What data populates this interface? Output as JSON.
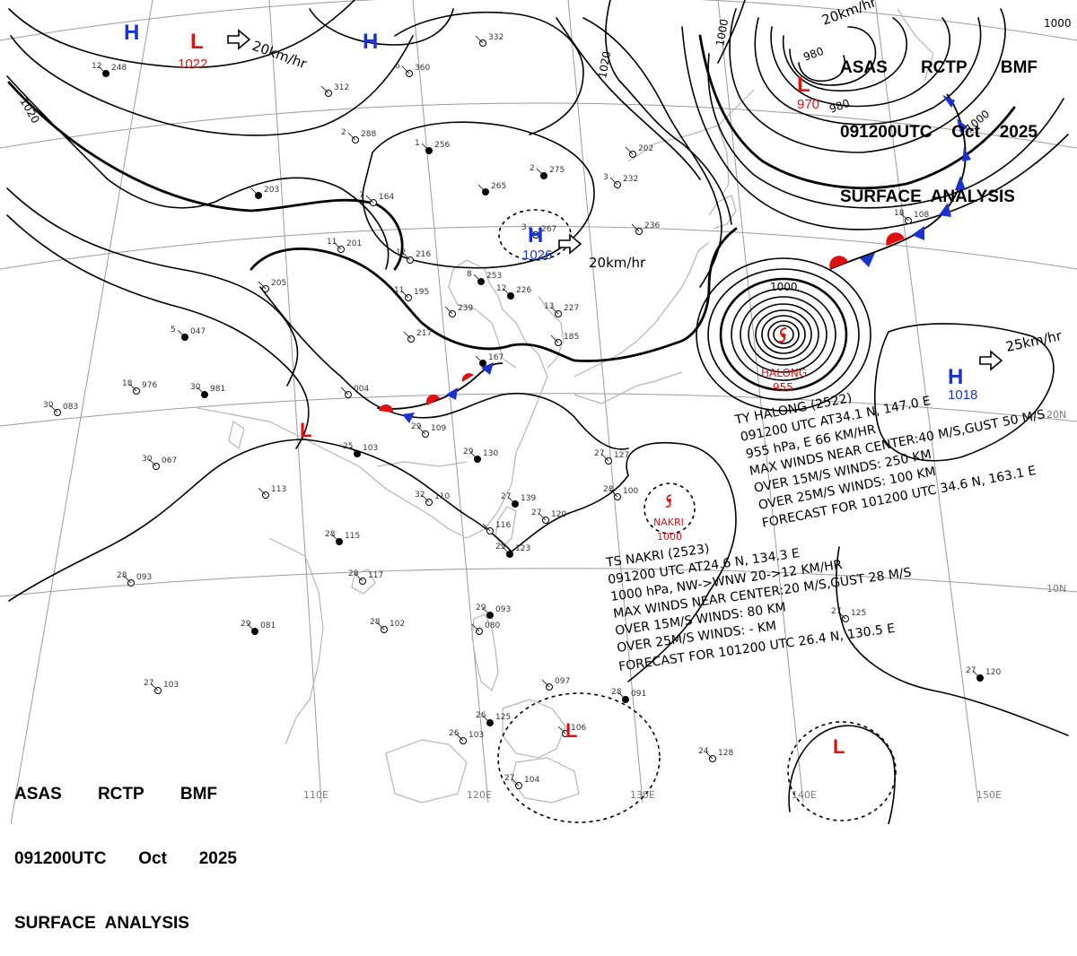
{
  "chart": {
    "agency": "ASAS",
    "station": "RCTP",
    "office": "BMF",
    "valid": "091200UTC",
    "month": "Oct",
    "year": "2025",
    "title": "SURFACE  ANALYSIS"
  },
  "colors": {
    "isobar": "#000000",
    "geography": "#bdbdbd",
    "high": "#1a33cc",
    "low": "#e01010",
    "grid": "#9a9a9a"
  },
  "longitudes": [
    "110E",
    "120E",
    "130E",
    "140E",
    "150E"
  ],
  "latitudes": [
    "20N",
    "10N"
  ],
  "pressure_centers": [
    {
      "type": "H",
      "value": "",
      "name": "H-top-left"
    },
    {
      "type": "L",
      "value": "1022",
      "name": "L-north"
    },
    {
      "type": "H",
      "value": "",
      "name": "H-mongolia"
    },
    {
      "type": "H",
      "value": "1026",
      "name": "H-north-china"
    },
    {
      "type": "L",
      "value": "970",
      "name": "L-kamchatka"
    },
    {
      "type": "H",
      "value": "1018",
      "name": "H-pacific"
    },
    {
      "type": "L",
      "value": "",
      "name": "L-inland"
    },
    {
      "type": "L",
      "value": "",
      "name": "L-philippines"
    },
    {
      "type": "L",
      "value": "",
      "name": "L-southeast"
    }
  ],
  "motion_labels": [
    "20km/hr",
    "20km/hr",
    "20km/hr",
    "25km/hr"
  ],
  "isobar_labels": [
    "1020",
    "1020",
    "1000",
    "1000",
    "980",
    "980",
    "1000",
    "1000"
  ],
  "storms": {
    "halong": {
      "name": "HALONG",
      "pressure": "955",
      "bulletin": [
        "TY  HALONG  (2522)",
        "091200  UTC  AT34.1 N, 147.0 E",
        "955 hPa, E  66 KM/HR",
        "MAX WINDS NEAR CENTER:40 M/S,GUST 50 M/S",
        "OVER 15M/S WINDS: 250 KM",
        "OVER 25M/S WINDS: 100 KM",
        "FORECAST FOR 101200 UTC 34.6 N, 163.1 E"
      ]
    },
    "nakri": {
      "name": "NAKRI",
      "pressure": "1000",
      "bulletin": [
        "TS  NAKRI  (2523)",
        "091200 UTC  AT24.6 N, 134.3 E",
        "1000 hPa, NW->WNW  20->12 KM/HR",
        "MAX WINDS NEAR CENTER:20 M/S,GUST 28 M/S",
        "OVER 15M/S WINDS: 80 KM",
        "OVER 25M/S WINDS: - KM",
        "FORECAST FOR 101200 UTC 26.4 N, 130.5 E"
      ]
    }
  },
  "station_plots": [
    {
      "p": "248",
      "t": "12"
    },
    {
      "p": "312",
      "t": ""
    },
    {
      "p": "288",
      "t": "2"
    },
    {
      "p": "256",
      "t": "1"
    },
    {
      "p": "332",
      "t": ""
    },
    {
      "p": "360",
      "t": "6"
    },
    {
      "p": "275",
      "t": "2"
    },
    {
      "p": "232",
      "t": "3"
    },
    {
      "p": "202",
      "t": ""
    },
    {
      "p": "265",
      "t": ""
    },
    {
      "p": "267",
      "t": "3"
    },
    {
      "p": "236",
      "t": ""
    },
    {
      "p": "226",
      "t": "12"
    },
    {
      "p": "216",
      "t": "12"
    },
    {
      "p": "201",
      "t": "11"
    },
    {
      "p": "203",
      "t": ""
    },
    {
      "p": "164",
      "t": "7"
    },
    {
      "p": "205",
      "t": ""
    },
    {
      "p": "047",
      "t": "5"
    },
    {
      "p": "195",
      "t": "11"
    },
    {
      "p": "239",
      "t": ""
    },
    {
      "p": "253",
      "t": "8"
    },
    {
      "p": "227",
      "t": "13"
    },
    {
      "p": "185",
      "t": ""
    },
    {
      "p": "167",
      "t": ""
    },
    {
      "p": "217",
      "t": ""
    },
    {
      "p": "976",
      "t": "18"
    },
    {
      "p": "981",
      "t": "30"
    },
    {
      "p": "083",
      "t": "30"
    },
    {
      "p": "067",
      "t": "30"
    },
    {
      "p": "103",
      "t": "25"
    },
    {
      "p": "004",
      "t": ""
    },
    {
      "p": "109",
      "t": "29"
    },
    {
      "p": "130",
      "t": "29"
    },
    {
      "p": "110",
      "t": "32"
    },
    {
      "p": "113",
      "t": ""
    },
    {
      "p": "115",
      "t": "28"
    },
    {
      "p": "117",
      "t": "28"
    },
    {
      "p": "093",
      "t": "28"
    },
    {
      "p": "139",
      "t": "27"
    },
    {
      "p": "120",
      "t": "27"
    },
    {
      "p": "116",
      "t": ""
    },
    {
      "p": "123",
      "t": "25"
    },
    {
      "p": "127",
      "t": "27"
    },
    {
      "p": "100",
      "t": "28"
    },
    {
      "p": "093",
      "t": "29"
    },
    {
      "p": "080",
      "t": ""
    },
    {
      "p": "102",
      "t": "28"
    },
    {
      "p": "081",
      "t": "29"
    },
    {
      "p": "103",
      "t": "27"
    },
    {
      "p": "097",
      "t": ""
    },
    {
      "p": "125",
      "t": "26"
    },
    {
      "p": "103",
      "t": "26"
    },
    {
      "p": "104",
      "t": "27"
    },
    {
      "p": "091",
      "t": "28"
    },
    {
      "p": "128",
      "t": "24"
    },
    {
      "p": "125",
      "t": "27"
    },
    {
      "p": "120",
      "t": "27"
    },
    {
      "p": "106",
      "t": ""
    },
    {
      "p": "108",
      "t": "18"
    }
  ]
}
